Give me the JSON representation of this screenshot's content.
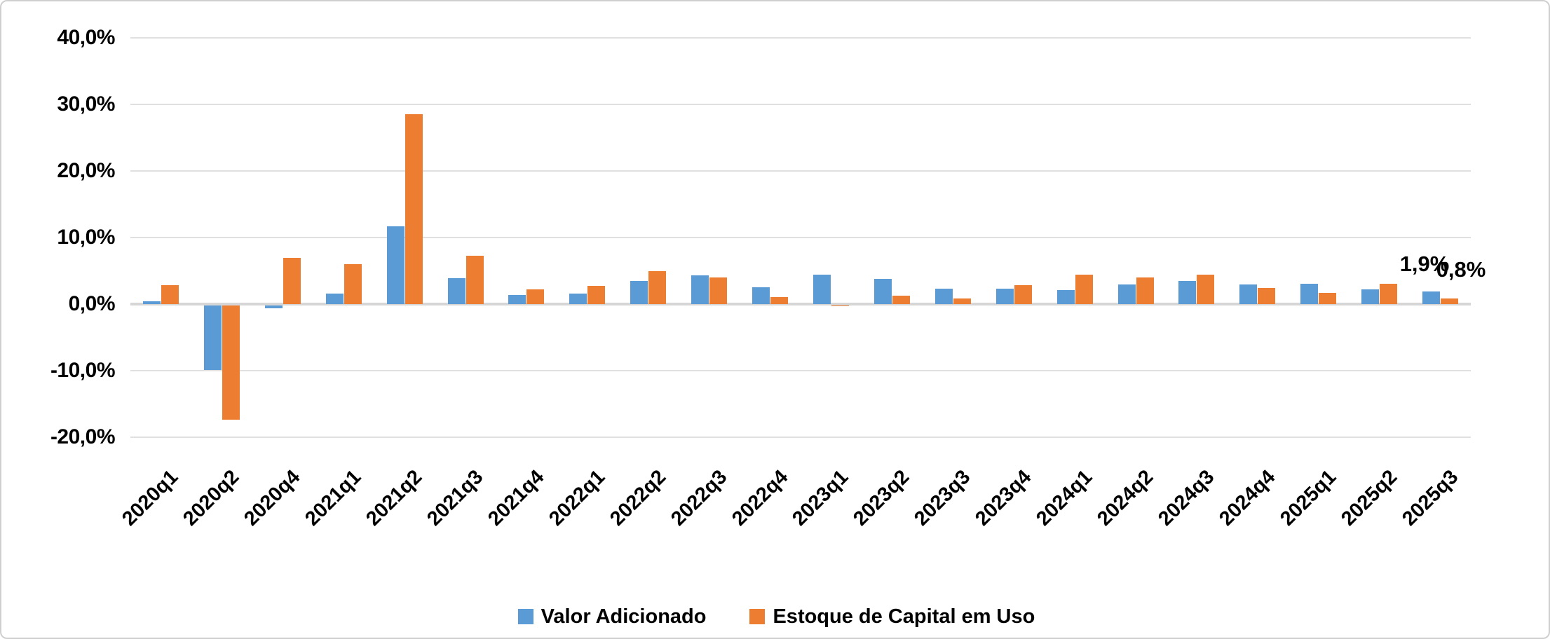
{
  "chart_data": {
    "type": "bar",
    "title": "",
    "xlabel": "",
    "ylabel": "",
    "categories": [
      "2020q1",
      "2020q2",
      "2020q4",
      "2021q1",
      "2021q2",
      "2021q3",
      "2021q4",
      "2022q1",
      "2022q2",
      "2022q3",
      "2022q4",
      "2023q1",
      "2023q2",
      "2023q3",
      "2023q4",
      "2024q1",
      "2024q2",
      "2024q3",
      "2024q4",
      "2025q1",
      "2025q2",
      "2025q3"
    ],
    "series": [
      {
        "name": "Valor Adicionado",
        "color": "#5B9BD5",
        "values": [
          0.4,
          -9.7,
          -0.4,
          1.6,
          11.7,
          3.9,
          1.4,
          1.6,
          3.5,
          4.3,
          2.5,
          4.4,
          3.8,
          2.3,
          2.3,
          2.1,
          2.9,
          3.5,
          3.0,
          3.1,
          2.2,
          1.9
        ]
      },
      {
        "name": "Estoque de Capital em Uso",
        "color": "#ED7D31",
        "values": [
          2.8,
          -17.2,
          7.0,
          6.0,
          28.5,
          7.3,
          2.2,
          2.7,
          5.0,
          4.0,
          1.1,
          -0.1,
          1.3,
          0.8,
          2.8,
          4.4,
          4.0,
          4.4,
          2.4,
          1.7,
          3.1,
          0.8
        ]
      }
    ],
    "ylim": [
      -20,
      40
    ],
    "ytick_step": 10,
    "ytick_labels": [
      "40,0%",
      "30,0%",
      "20,0%",
      "10,0%",
      "0,0%",
      "-10,0%",
      "-20,0%"
    ],
    "grid": true,
    "legend_position": "bottom",
    "annotations": [
      {
        "text": "1,9%",
        "series": "Valor Adicionado",
        "category": "2025q3"
      },
      {
        "text": "0,8%",
        "series": "Estoque de Capital em Uso",
        "category": "2025q3"
      }
    ]
  }
}
